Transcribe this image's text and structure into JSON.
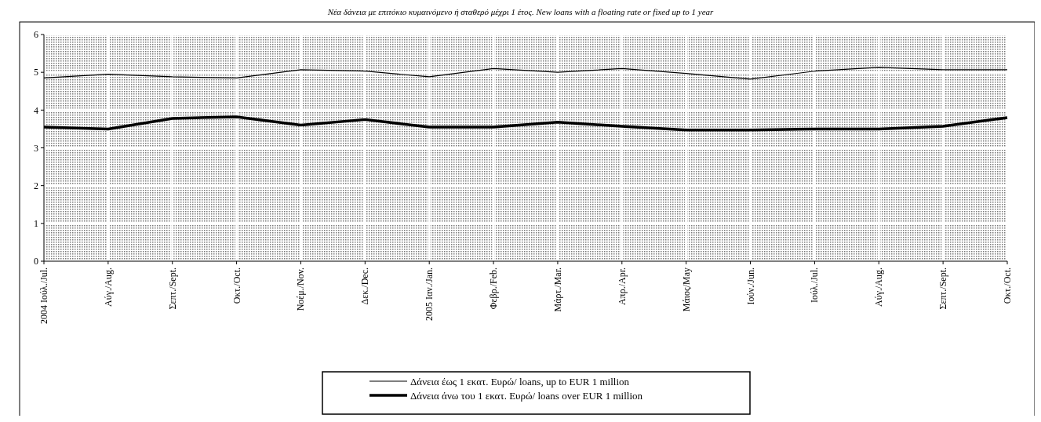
{
  "chart_data": {
    "type": "line",
    "title": "Νέα δάνεια με επιτόκιο κυμαινόμενο ή σταθερό μέχρι 1 έτος. New loans with a floating rate or fixed up to 1 year",
    "categories": [
      "2004 Ιούλ./Jul.",
      "Αύγ./Aug.",
      "Σεπτ./Sept.",
      "Οκτ./Oct.",
      "Νοέμ./Nov.",
      "Δεκ./Dec.",
      "2005 Ιαν./Jan.",
      "Φεβρ./Feb.",
      "Μάρτ./Mar.",
      "Απρ./Apr.",
      "Μάιος/May",
      "Ιούν./Jun.",
      "Ιούλ./Jul.",
      "Αύγ./Aug.",
      "Σεπτ./Sept.",
      "Οκτ./Oct."
    ],
    "series": [
      {
        "name": "Δάνεια έως 1 εκατ. Ευρώ/ loans, up to EUR 1 million",
        "color": "#000000",
        "values": [
          4.85,
          4.95,
          4.88,
          4.85,
          5.07,
          5.03,
          4.88,
          5.1,
          5.0,
          5.1,
          4.97,
          4.82,
          5.03,
          5.13,
          5.07,
          5.07
        ]
      },
      {
        "name": "Δάνεια άνω του 1 εκατ. Ευρώ/ loans over EUR 1 million",
        "color": "#000000",
        "values": [
          3.55,
          3.5,
          3.78,
          3.82,
          3.6,
          3.75,
          3.55,
          3.55,
          3.68,
          3.57,
          3.47,
          3.47,
          3.5,
          3.5,
          3.57,
          3.8
        ]
      }
    ],
    "ylim": [
      0,
      6
    ],
    "yticks": [
      0,
      1,
      2,
      3,
      4,
      5,
      6
    ],
    "grid": true,
    "legend": "bottom",
    "marker": "none",
    "line_style": "solid"
  }
}
